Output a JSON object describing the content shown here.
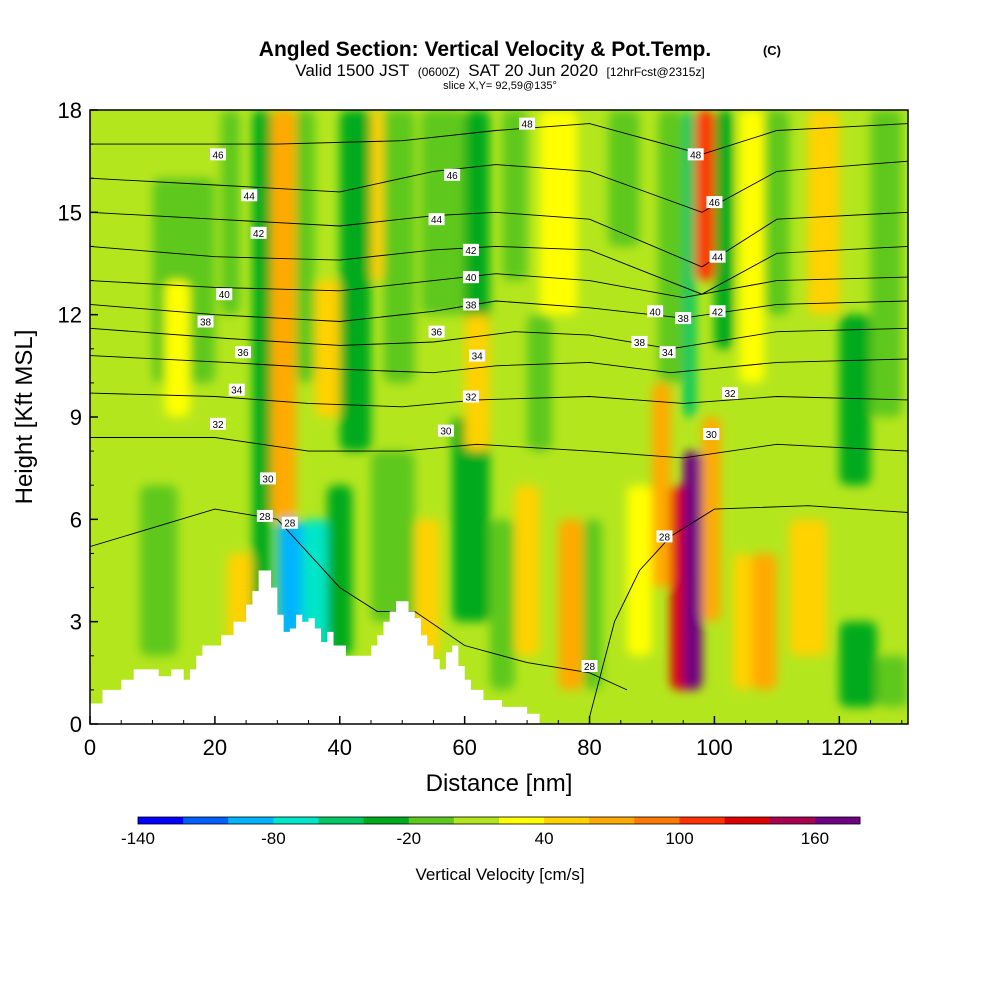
{
  "chart_data": {
    "type": "heatmap",
    "title": "Angled Section: Vertical Velocity & Pot.Temp.",
    "title_mark": "(C)",
    "subtitle_parts": [
      "Valid 1500 JST",
      "(0600Z)",
      "SAT 20 Jun 2020",
      "[12hrFcst@2315z]"
    ],
    "slice_label": "slice X,Y= 92,59@135°",
    "xlabel": "Distance [nm]",
    "ylabel": "Height [Kft MSL]",
    "xlim": [
      0,
      131
    ],
    "ylim": [
      0,
      18
    ],
    "x_ticks": [
      0,
      20,
      40,
      60,
      80,
      100,
      120
    ],
    "y_ticks": [
      0,
      3,
      6,
      9,
      12,
      15,
      18
    ],
    "colorbar": {
      "label": "Vertical Velocity [cm/s]",
      "min": -140,
      "step": 20,
      "tick_values": [
        -140,
        -80,
        -20,
        40,
        100,
        160
      ],
      "tick_labels": [
        "-140",
        "-80",
        "-20",
        "40",
        "100",
        "160"
      ],
      "colors": [
        "#0000ff",
        "#0060ff",
        "#00b4ff",
        "#00e6c8",
        "#00c864",
        "#00aa1e",
        "#5fc81e",
        "#b4e61e",
        "#ffff00",
        "#ffd200",
        "#ffaa00",
        "#ff7800",
        "#ff3200",
        "#dc0000",
        "#aa0050",
        "#6e0082"
      ]
    },
    "terrain": [
      [
        0,
        0.6
      ],
      [
        2,
        0.6
      ],
      [
        2,
        1
      ],
      [
        5,
        1
      ],
      [
        5,
        1.3
      ],
      [
        7,
        1.3
      ],
      [
        7,
        1.6
      ],
      [
        11,
        1.6
      ],
      [
        11,
        1.4
      ],
      [
        13,
        1.4
      ],
      [
        13,
        1.6
      ],
      [
        15,
        1.6
      ],
      [
        15,
        1.3
      ],
      [
        16,
        1.3
      ],
      [
        16,
        1.6
      ],
      [
        17,
        1.6
      ],
      [
        17,
        2
      ],
      [
        18,
        2
      ],
      [
        18,
        2.3
      ],
      [
        21,
        2.3
      ],
      [
        21,
        2.6
      ],
      [
        23,
        2.6
      ],
      [
        23,
        3
      ],
      [
        25,
        3
      ],
      [
        25,
        3.5
      ],
      [
        26,
        3.5
      ],
      [
        26,
        3.9
      ],
      [
        27,
        3.9
      ],
      [
        27,
        4.5
      ],
      [
        29,
        4.5
      ],
      [
        29,
        4
      ],
      [
        30,
        4
      ],
      [
        30,
        3.2
      ],
      [
        31,
        3.2
      ],
      [
        31,
        2.7
      ],
      [
        32,
        2.7
      ],
      [
        32,
        2.8
      ],
      [
        33,
        2.8
      ],
      [
        33,
        3.2
      ],
      [
        34,
        3.2
      ],
      [
        34,
        3
      ],
      [
        35,
        3
      ],
      [
        35,
        3.1
      ],
      [
        36,
        3.1
      ],
      [
        36,
        2.8
      ],
      [
        37,
        2.8
      ],
      [
        37,
        2.4
      ],
      [
        38,
        2.4
      ],
      [
        38,
        2.7
      ],
      [
        39,
        2.7
      ],
      [
        39,
        2.3
      ],
      [
        41,
        2.3
      ],
      [
        41,
        2
      ],
      [
        45,
        2
      ],
      [
        45,
        2.3
      ],
      [
        46,
        2.3
      ],
      [
        46,
        2.6
      ],
      [
        47,
        2.6
      ],
      [
        47,
        3
      ],
      [
        48,
        3
      ],
      [
        48,
        3.3
      ],
      [
        49,
        3.3
      ],
      [
        49,
        3.6
      ],
      [
        51,
        3.6
      ],
      [
        51,
        3.3
      ],
      [
        52,
        3.3
      ],
      [
        52,
        3.1
      ],
      [
        53,
        3.1
      ],
      [
        53,
        2.6
      ],
      [
        54,
        2.6
      ],
      [
        54,
        2.3
      ],
      [
        55,
        2.3
      ],
      [
        55,
        1.9
      ],
      [
        56,
        1.9
      ],
      [
        56,
        1.6
      ],
      [
        57,
        1.6
      ],
      [
        57,
        2.1
      ],
      [
        58,
        2.1
      ],
      [
        58,
        2.3
      ],
      [
        59,
        2.3
      ],
      [
        59,
        1.7
      ],
      [
        60,
        1.7
      ],
      [
        60,
        1.3
      ],
      [
        61,
        1.3
      ],
      [
        61,
        1
      ],
      [
        63,
        1
      ],
      [
        63,
        0.7
      ],
      [
        66,
        0.7
      ],
      [
        66,
        0.5
      ],
      [
        70,
        0.5
      ],
      [
        70,
        0.3
      ],
      [
        72,
        0.3
      ],
      [
        72,
        0
      ],
      [
        131,
        0
      ]
    ],
    "theta_contours": [
      {
        "level": 28,
        "points": [
          [
            0,
            5.2
          ],
          [
            20,
            6.3
          ],
          [
            30,
            6.0
          ],
          [
            34,
            5.2
          ],
          [
            40,
            4.0
          ],
          [
            46,
            3.3
          ],
          [
            52,
            3.3
          ],
          [
            60,
            2.3
          ],
          [
            70,
            1.8
          ],
          [
            80,
            1.5
          ],
          [
            86,
            1.0
          ]
        ]
      },
      {
        "level": 28,
        "points": [
          [
            80,
            0.2
          ],
          [
            82,
            1.6
          ],
          [
            84,
            3.0
          ],
          [
            88,
            4.5
          ],
          [
            93,
            5.5
          ],
          [
            100,
            6.3
          ],
          [
            115,
            6.4
          ],
          [
            131,
            6.2
          ]
        ]
      },
      {
        "level": 30,
        "points": [
          [
            0,
            8.4
          ],
          [
            20,
            8.4
          ],
          [
            35,
            8.0
          ],
          [
            50,
            8.0
          ],
          [
            62,
            8.2
          ],
          [
            80,
            8.0
          ],
          [
            95,
            7.8
          ],
          [
            110,
            8.2
          ],
          [
            131,
            8.0
          ]
        ]
      },
      {
        "level": 32,
        "points": [
          [
            0,
            9.7
          ],
          [
            20,
            9.6
          ],
          [
            35,
            9.4
          ],
          [
            50,
            9.3
          ],
          [
            62,
            9.5
          ],
          [
            80,
            9.6
          ],
          [
            95,
            9.4
          ],
          [
            110,
            9.6
          ],
          [
            131,
            9.5
          ]
        ]
      },
      {
        "level": 34,
        "points": [
          [
            0,
            10.8
          ],
          [
            22,
            10.6
          ],
          [
            40,
            10.4
          ],
          [
            55,
            10.3
          ],
          [
            65,
            10.5
          ],
          [
            80,
            10.6
          ],
          [
            93,
            10.3
          ],
          [
            110,
            10.6
          ],
          [
            131,
            10.7
          ]
        ]
      },
      {
        "level": 36,
        "points": [
          [
            0,
            11.6
          ],
          [
            22,
            11.3
          ],
          [
            40,
            11.1
          ],
          [
            55,
            11.2
          ],
          [
            68,
            11.5
          ],
          [
            80,
            11.4
          ],
          [
            93,
            11.0
          ],
          [
            110,
            11.5
          ],
          [
            131,
            11.6
          ]
        ]
      },
      {
        "level": 38,
        "points": [
          [
            0,
            12.3
          ],
          [
            20,
            12.0
          ],
          [
            40,
            11.8
          ],
          [
            55,
            12.1
          ],
          [
            65,
            12.4
          ],
          [
            80,
            12.2
          ],
          [
            95,
            11.9
          ],
          [
            110,
            12.3
          ],
          [
            131,
            12.4
          ]
        ]
      },
      {
        "level": 40,
        "points": [
          [
            0,
            13.0
          ],
          [
            20,
            12.8
          ],
          [
            40,
            12.7
          ],
          [
            55,
            13.0
          ],
          [
            65,
            13.2
          ],
          [
            80,
            13.0
          ],
          [
            95,
            12.5
          ],
          [
            110,
            13.0
          ],
          [
            131,
            13.1
          ]
        ]
      },
      {
        "level": 42,
        "points": [
          [
            0,
            14.0
          ],
          [
            20,
            13.7
          ],
          [
            40,
            13.6
          ],
          [
            55,
            13.9
          ],
          [
            65,
            14.0
          ],
          [
            80,
            13.9
          ],
          [
            98,
            12.6
          ],
          [
            110,
            13.8
          ],
          [
            131,
            14.0
          ]
        ]
      },
      {
        "level": 44,
        "points": [
          [
            0,
            15.0
          ],
          [
            20,
            14.8
          ],
          [
            40,
            14.6
          ],
          [
            55,
            14.9
          ],
          [
            65,
            15.0
          ],
          [
            80,
            14.8
          ],
          [
            98,
            13.4
          ],
          [
            110,
            14.8
          ],
          [
            131,
            15.0
          ]
        ]
      },
      {
        "level": 46,
        "points": [
          [
            0,
            16.0
          ],
          [
            20,
            15.8
          ],
          [
            40,
            15.6
          ],
          [
            55,
            16.2
          ],
          [
            65,
            16.4
          ],
          [
            80,
            16.2
          ],
          [
            98,
            15.0
          ],
          [
            110,
            16.2
          ],
          [
            131,
            16.5
          ]
        ]
      },
      {
        "level": 48,
        "points": [
          [
            0,
            17.0
          ],
          [
            30,
            17.0
          ],
          [
            50,
            17.1
          ],
          [
            65,
            17.4
          ],
          [
            80,
            17.6
          ],
          [
            98,
            16.7
          ],
          [
            110,
            17.4
          ],
          [
            131,
            17.6
          ]
        ]
      }
    ],
    "contour_labels": [
      {
        "text": "46",
        "x": 20.5,
        "y": 16.7
      },
      {
        "text": "44",
        "x": 25.5,
        "y": 15.5
      },
      {
        "text": "42",
        "x": 27,
        "y": 14.4
      },
      {
        "text": "40",
        "x": 21.5,
        "y": 12.6
      },
      {
        "text": "38",
        "x": 18.5,
        "y": 11.8
      },
      {
        "text": "36",
        "x": 24.5,
        "y": 10.9
      },
      {
        "text": "34",
        "x": 23.5,
        "y": 9.8
      },
      {
        "text": "32",
        "x": 20.5,
        "y": 8.8
      },
      {
        "text": "30",
        "x": 28.5,
        "y": 7.2
      },
      {
        "text": "28",
        "x": 28,
        "y": 6.1
      },
      {
        "text": "28",
        "x": 32,
        "y": 5.9
      },
      {
        "text": "48",
        "x": 70,
        "y": 17.6
      },
      {
        "text": "46",
        "x": 58,
        "y": 16.1
      },
      {
        "text": "44",
        "x": 55.5,
        "y": 14.8
      },
      {
        "text": "42",
        "x": 61,
        "y": 13.9
      },
      {
        "text": "40",
        "x": 61,
        "y": 13.1
      },
      {
        "text": "38",
        "x": 61,
        "y": 12.3
      },
      {
        "text": "36",
        "x": 55.5,
        "y": 11.5
      },
      {
        "text": "34",
        "x": 62,
        "y": 10.8
      },
      {
        "text": "32",
        "x": 61,
        "y": 9.6
      },
      {
        "text": "30",
        "x": 57,
        "y": 8.6
      },
      {
        "text": "48",
        "x": 97,
        "y": 16.7
      },
      {
        "text": "46",
        "x": 100,
        "y": 15.3
      },
      {
        "text": "44",
        "x": 100.5,
        "y": 13.7
      },
      {
        "text": "42",
        "x": 100.5,
        "y": 12.1
      },
      {
        "text": "40",
        "x": 90.5,
        "y": 12.1
      },
      {
        "text": "38",
        "x": 95,
        "y": 11.9
      },
      {
        "text": "38",
        "x": 88,
        "y": 11.2
      },
      {
        "text": "34",
        "x": 92.5,
        "y": 10.9
      },
      {
        "text": "32",
        "x": 102.5,
        "y": 9.7
      },
      {
        "text": "30",
        "x": 99.5,
        "y": 8.5
      },
      {
        "text": "28",
        "x": 92,
        "y": 5.5
      },
      {
        "text": "28",
        "x": 80,
        "y": 1.7
      }
    ]
  }
}
